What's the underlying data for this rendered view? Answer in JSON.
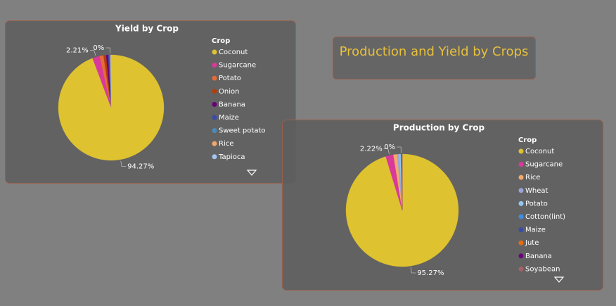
{
  "title": "Production and Yield by Crops",
  "chart_data": [
    {
      "type": "pie",
      "title": "Yield by Crop",
      "legend_title": "Crop",
      "categories": [
        "Coconut",
        "Sugarcane",
        "Potato",
        "Onion",
        "Banana",
        "Maize",
        "Sweet potato",
        "Rice",
        "Tapioca"
      ],
      "values": [
        94.27,
        2.21,
        1.2,
        0.8,
        0.6,
        0.4,
        0.3,
        0.2,
        0
      ],
      "value_labels": [
        "94.27%",
        "2.21%",
        null,
        null,
        null,
        null,
        null,
        null,
        "0%"
      ],
      "colors": [
        "#dfc22f",
        "#d9399b",
        "#e56b37",
        "#b13e0c",
        "#6b007b",
        "#3a4ba8",
        "#4e8ab9",
        "#f3a76a",
        "#a1c4f0"
      ]
    },
    {
      "type": "pie",
      "title": "Production by Crop",
      "legend_title": "Crop",
      "categories": [
        "Coconut",
        "Sugarcane",
        "Rice",
        "Wheat",
        "Potato",
        "Cotton(lint)",
        "Maize",
        "Jute",
        "Banana",
        "Soyabean"
      ],
      "values": [
        95.27,
        2.22,
        1.1,
        0.6,
        0.4,
        0.2,
        0.1,
        0.06,
        0.05,
        0
      ],
      "value_labels": [
        "95.27%",
        "2.22%",
        null,
        null,
        null,
        null,
        null,
        null,
        null,
        "0%"
      ],
      "colors": [
        "#dfc22f",
        "#d9399b",
        "#f4a96a",
        "#9aa3d8",
        "#93c7f0",
        "#3d8ce5",
        "#3a4ba8",
        "#e66c10",
        "#6b007b",
        "#a6606a"
      ]
    }
  ]
}
